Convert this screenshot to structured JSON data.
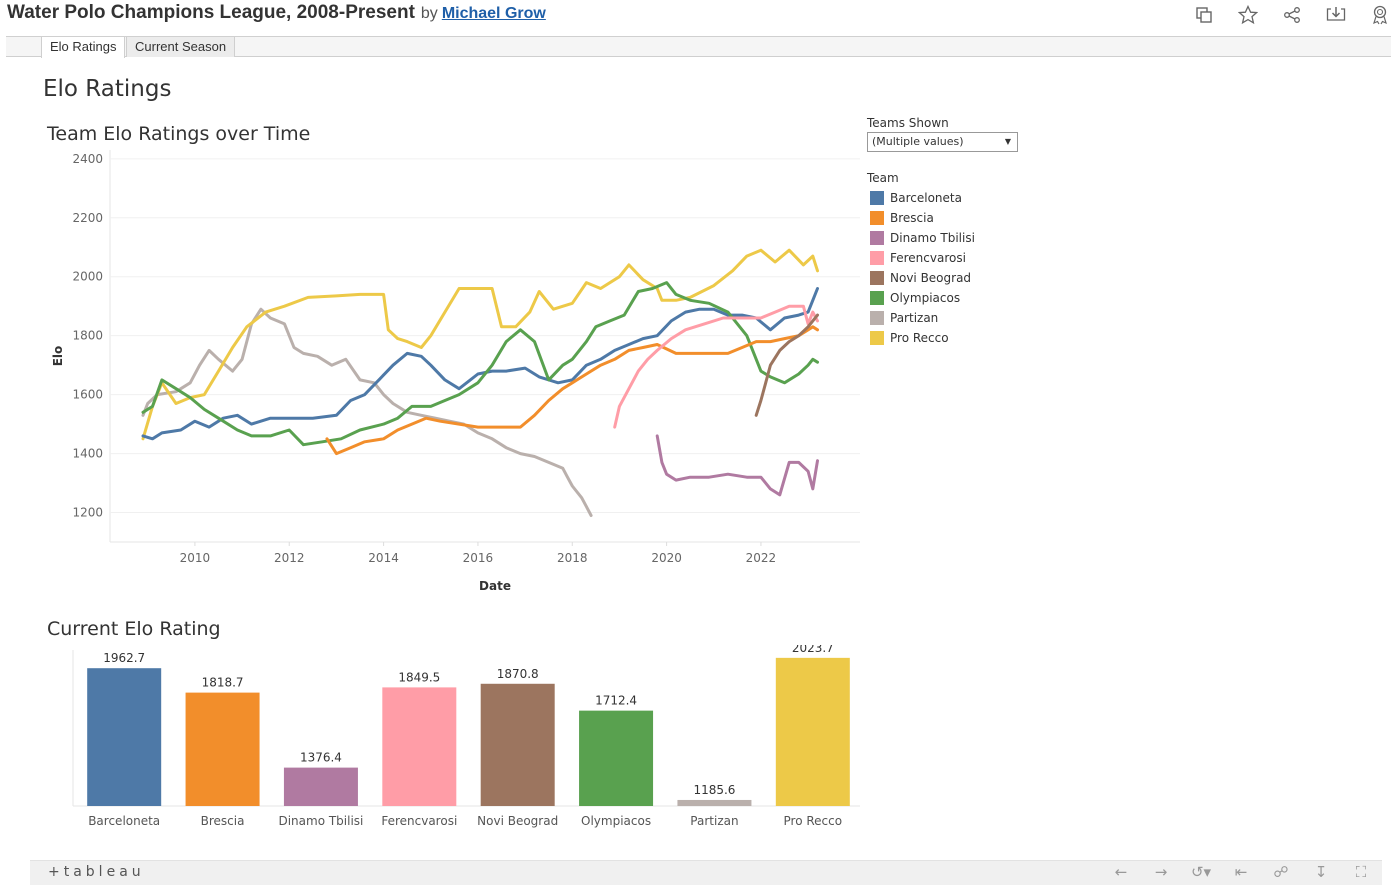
{
  "header": {
    "title": "Water Polo Champions League, 2008-Present",
    "by": "by",
    "author": "Michael Grow"
  },
  "tabs": [
    {
      "label": "Elo Ratings",
      "active": true
    },
    {
      "label": "Current Season",
      "active": false
    }
  ],
  "dashboard_title": "Elo Ratings",
  "filter": {
    "label": "Teams Shown",
    "value": "(Multiple values)"
  },
  "legend": {
    "title": "Team",
    "items": [
      {
        "name": "Barceloneta",
        "color": "#4e79a7"
      },
      {
        "name": "Brescia",
        "color": "#f28e2b"
      },
      {
        "name": "Dinamo Tbilisi",
        "color": "#b07aa1"
      },
      {
        "name": "Ferencvarosi",
        "color": "#ff9da7"
      },
      {
        "name": "Novi Beograd",
        "color": "#9c755f"
      },
      {
        "name": "Olympiacos",
        "color": "#59a14f"
      },
      {
        "name": "Partizan",
        "color": "#bab0ac"
      },
      {
        "name": "Pro Recco",
        "color": "#edc948"
      }
    ]
  },
  "footer": {
    "logo": "+tableau"
  },
  "chart_data": [
    {
      "type": "line",
      "title": "Team Elo Ratings over Time",
      "xlabel": "Date",
      "ylabel": "Elo",
      "xlim": [
        2008.2,
        2024.1
      ],
      "ylim": [
        1100,
        2430
      ],
      "x_ticks": [
        2010,
        2012,
        2014,
        2016,
        2018,
        2020,
        2022
      ],
      "y_ticks": [
        1200,
        1400,
        1600,
        1800,
        2000,
        2200,
        2400
      ],
      "grid": true,
      "series": [
        {
          "name": "Partizan",
          "color": "#bab0ac",
          "x": [
            2008.9,
            2009.0,
            2009.2,
            2009.6,
            2009.9,
            2010.1,
            2010.3,
            2010.5,
            2010.8,
            2011.0,
            2011.2,
            2011.4,
            2011.6,
            2011.9,
            2012.1,
            2012.3,
            2012.6,
            2012.9,
            2013.2,
            2013.5,
            2013.8,
            2014.0,
            2014.2,
            2014.5,
            2014.8,
            2015.1,
            2015.4,
            2015.7,
            2016.0,
            2016.3,
            2016.6,
            2016.9,
            2017.2,
            2017.5,
            2017.8,
            2017.9,
            2018.0,
            2018.2,
            2018.3,
            2018.4
          ],
          "y": [
            1530,
            1570,
            1600,
            1610,
            1640,
            1700,
            1750,
            1720,
            1680,
            1720,
            1840,
            1890,
            1860,
            1840,
            1760,
            1740,
            1730,
            1700,
            1720,
            1650,
            1640,
            1600,
            1570,
            1540,
            1530,
            1520,
            1510,
            1500,
            1470,
            1450,
            1420,
            1400,
            1390,
            1370,
            1350,
            1320,
            1290,
            1250,
            1220,
            1190
          ]
        },
        {
          "name": "Pro Recco",
          "color": "#edc948",
          "x": [
            2008.9,
            2009.1,
            2009.3,
            2009.6,
            2009.9,
            2010.2,
            2010.5,
            2010.8,
            2011.1,
            2011.5,
            2011.9,
            2012.4,
            2013.0,
            2013.5,
            2014.0,
            2014.1,
            2014.3,
            2014.5,
            2014.8,
            2015.0,
            2015.3,
            2015.6,
            2016.0,
            2016.3,
            2016.5,
            2016.8,
            2017.1,
            2017.3,
            2017.6,
            2018.0,
            2018.3,
            2018.6,
            2019.0,
            2019.2,
            2019.5,
            2019.8,
            2019.9,
            2020.2,
            2020.5,
            2021.0,
            2021.4,
            2021.7,
            2022.0,
            2022.3,
            2022.6,
            2022.9,
            2023.1,
            2023.2
          ],
          "y": [
            1450,
            1560,
            1640,
            1570,
            1590,
            1600,
            1680,
            1760,
            1830,
            1880,
            1900,
            1930,
            1935,
            1940,
            1940,
            1820,
            1790,
            1780,
            1760,
            1800,
            1880,
            1960,
            1960,
            1960,
            1830,
            1830,
            1880,
            1950,
            1890,
            1910,
            1980,
            1960,
            2000,
            2040,
            1990,
            1960,
            1920,
            1920,
            1930,
            1970,
            2020,
            2070,
            2090,
            2050,
            2090,
            2040,
            2070,
            2020
          ]
        },
        {
          "name": "Barceloneta",
          "color": "#4e79a7",
          "x": [
            2008.9,
            2009.1,
            2009.3,
            2009.7,
            2010.0,
            2010.3,
            2010.6,
            2010.9,
            2011.2,
            2011.6,
            2012.0,
            2012.5,
            2013.0,
            2013.3,
            2013.6,
            2013.9,
            2014.2,
            2014.5,
            2014.8,
            2015.0,
            2015.3,
            2015.6,
            2016.0,
            2016.3,
            2016.6,
            2017.0,
            2017.3,
            2017.7,
            2018.0,
            2018.3,
            2018.6,
            2018.9,
            2019.2,
            2019.5,
            2019.8,
            2020.1,
            2020.4,
            2020.7,
            2021.0,
            2021.3,
            2021.6,
            2021.9,
            2022.2,
            2022.5,
            2022.8,
            2023.0,
            2023.1,
            2023.2
          ],
          "y": [
            1460,
            1450,
            1470,
            1480,
            1510,
            1490,
            1520,
            1530,
            1500,
            1520,
            1520,
            1520,
            1530,
            1580,
            1600,
            1650,
            1700,
            1740,
            1730,
            1700,
            1650,
            1620,
            1670,
            1680,
            1680,
            1690,
            1660,
            1640,
            1650,
            1700,
            1720,
            1750,
            1770,
            1790,
            1800,
            1850,
            1880,
            1890,
            1890,
            1870,
            1870,
            1860,
            1820,
            1860,
            1870,
            1880,
            1920,
            1960
          ]
        },
        {
          "name": "Olympiacos",
          "color": "#59a14f",
          "x": [
            2008.9,
            2009.1,
            2009.3,
            2009.6,
            2009.9,
            2010.2,
            2010.5,
            2010.9,
            2011.2,
            2011.6,
            2012.0,
            2012.3,
            2012.7,
            2013.1,
            2013.5,
            2014.0,
            2014.3,
            2014.6,
            2015.0,
            2015.3,
            2015.6,
            2016.0,
            2016.3,
            2016.6,
            2016.9,
            2017.2,
            2017.5,
            2017.8,
            2018.0,
            2018.3,
            2018.5,
            2018.8,
            2019.1,
            2019.4,
            2019.7,
            2020.0,
            2020.2,
            2020.5,
            2020.9,
            2021.3,
            2021.7,
            2022.0,
            2022.2,
            2022.5,
            2022.8,
            2023.0,
            2023.1,
            2023.2
          ],
          "y": [
            1540,
            1560,
            1650,
            1620,
            1590,
            1550,
            1520,
            1480,
            1460,
            1460,
            1480,
            1430,
            1440,
            1450,
            1480,
            1500,
            1520,
            1560,
            1560,
            1580,
            1600,
            1640,
            1700,
            1780,
            1820,
            1780,
            1650,
            1700,
            1720,
            1780,
            1830,
            1850,
            1870,
            1950,
            1960,
            1980,
            1940,
            1920,
            1910,
            1880,
            1800,
            1680,
            1660,
            1640,
            1670,
            1700,
            1720,
            1710
          ]
        },
        {
          "name": "Brescia",
          "color": "#f28e2b",
          "x": [
            2012.8,
            2013.0,
            2013.3,
            2013.6,
            2014.0,
            2014.3,
            2014.6,
            2014.9,
            2015.2,
            2015.6,
            2016.0,
            2016.4,
            2016.9,
            2017.2,
            2017.5,
            2017.8,
            2018.0,
            2018.3,
            2018.6,
            2018.9,
            2019.2,
            2019.5,
            2019.8,
            2020.2,
            2020.6,
            2021.0,
            2021.3,
            2021.6,
            2021.9,
            2022.2,
            2022.5,
            2022.8,
            2023.0,
            2023.1,
            2023.2
          ],
          "y": [
            1450,
            1400,
            1420,
            1440,
            1450,
            1480,
            1500,
            1520,
            1510,
            1500,
            1490,
            1490,
            1490,
            1530,
            1580,
            1620,
            1640,
            1670,
            1700,
            1720,
            1750,
            1760,
            1770,
            1740,
            1740,
            1740,
            1740,
            1760,
            1780,
            1780,
            1790,
            1800,
            1820,
            1830,
            1820
          ]
        },
        {
          "name": "Ferencvarosi",
          "color": "#ff9da7",
          "x": [
            2018.9,
            2019.0,
            2019.2,
            2019.4,
            2019.6,
            2019.8,
            2020.1,
            2020.4,
            2020.8,
            2021.2,
            2021.6,
            2022.0,
            2022.3,
            2022.6,
            2022.9,
            2023.0,
            2023.1,
            2023.2
          ],
          "y": [
            1490,
            1560,
            1620,
            1680,
            1720,
            1750,
            1790,
            1820,
            1840,
            1860,
            1860,
            1860,
            1880,
            1900,
            1900,
            1840,
            1880,
            1850
          ]
        },
        {
          "name": "Novi Beograd",
          "color": "#9c755f",
          "x": [
            2021.9,
            2022.0,
            2022.1,
            2022.2,
            2022.4,
            2022.6,
            2022.8,
            2023.0,
            2023.2
          ],
          "y": [
            1530,
            1580,
            1640,
            1700,
            1750,
            1780,
            1800,
            1830,
            1870
          ]
        },
        {
          "name": "Dinamo Tbilisi",
          "color": "#b07aa1",
          "x": [
            2019.8,
            2019.9,
            2020.0,
            2020.2,
            2020.5,
            2020.9,
            2021.3,
            2021.7,
            2022.0,
            2022.2,
            2022.4,
            2022.6,
            2022.8,
            2023.0,
            2023.1,
            2023.2
          ],
          "y": [
            1460,
            1370,
            1330,
            1310,
            1320,
            1320,
            1330,
            1320,
            1320,
            1280,
            1260,
            1370,
            1370,
            1340,
            1280,
            1376
          ]
        }
      ]
    },
    {
      "type": "bar",
      "title": "Current Elo Rating",
      "categories": [
        "Barceloneta",
        "Brescia",
        "Dinamo Tbilisi",
        "Ferencvarosi",
        "Novi Beograd",
        "Olympiacos",
        "Partizan",
        "Pro Recco"
      ],
      "values": [
        1962.7,
        1818.7,
        1376.4,
        1849.5,
        1870.8,
        1712.4,
        1185.6,
        2023.7
      ],
      "colors": [
        "#4e79a7",
        "#f28e2b",
        "#b07aa1",
        "#ff9da7",
        "#9c755f",
        "#59a14f",
        "#bab0ac",
        "#edc948"
      ],
      "ylim": [
        1150,
        2070
      ]
    }
  ]
}
